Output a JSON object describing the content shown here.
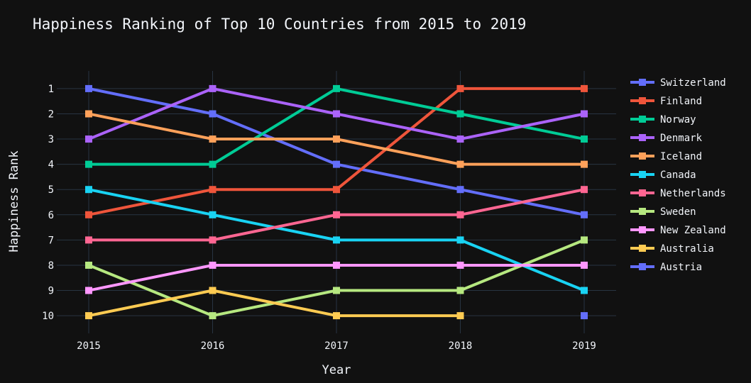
{
  "chart_data": {
    "type": "line",
    "title": "Happiness Ranking of Top 10 Countries from 2015 to 2019",
    "xlabel": "Year",
    "ylabel": "Happiness Rank",
    "x": [
      "2015",
      "2016",
      "2017",
      "2018",
      "2019"
    ],
    "y_ticks": [
      "1",
      "2",
      "3",
      "4",
      "5",
      "6",
      "7",
      "8",
      "9",
      "10"
    ],
    "ylim": [
      10.7,
      0.3
    ],
    "y_reversed": true,
    "grid": true,
    "legend_position": "right",
    "series": [
      {
        "name": "Switzerland",
        "color": "#636efa",
        "values": [
          1,
          2,
          4,
          5,
          6
        ]
      },
      {
        "name": "Finland",
        "color": "#ef553b",
        "values": [
          6,
          5,
          5,
          1,
          1
        ]
      },
      {
        "name": "Norway",
        "color": "#00cc96",
        "values": [
          4,
          4,
          1,
          2,
          3
        ]
      },
      {
        "name": "Denmark",
        "color": "#ab63fa",
        "values": [
          3,
          1,
          2,
          3,
          2
        ]
      },
      {
        "name": "Iceland",
        "color": "#ffa15a",
        "values": [
          2,
          3,
          3,
          4,
          4
        ]
      },
      {
        "name": "Canada",
        "color": "#19d3f3",
        "values": [
          5,
          6,
          7,
          7,
          9
        ]
      },
      {
        "name": "Netherlands",
        "color": "#ff6692",
        "values": [
          7,
          7,
          6,
          6,
          5
        ]
      },
      {
        "name": "Sweden",
        "color": "#b6e880",
        "values": [
          8,
          10,
          9,
          9,
          7
        ]
      },
      {
        "name": "New Zealand",
        "color": "#ff97ff",
        "values": [
          9,
          8,
          8,
          8,
          8
        ]
      },
      {
        "name": "Australia",
        "color": "#fecb52",
        "values": [
          10,
          9,
          10,
          10,
          null
        ]
      },
      {
        "name": "Austria",
        "color": "#636efa",
        "values": [
          null,
          null,
          null,
          null,
          10
        ]
      }
    ]
  }
}
